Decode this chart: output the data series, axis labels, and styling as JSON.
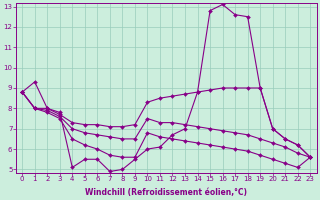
{
  "xlabel": "Windchill (Refroidissement éolien,°C)",
  "x": [
    0,
    1,
    2,
    3,
    4,
    5,
    6,
    7,
    8,
    9,
    10,
    11,
    12,
    13,
    14,
    15,
    16,
    17,
    18,
    19,
    20,
    21,
    22,
    23
  ],
  "line1": [
    8.8,
    9.3,
    8.0,
    7.8,
    5.1,
    5.5,
    5.5,
    4.9,
    5.0,
    5.5,
    6.0,
    6.1,
    6.7,
    7.0,
    8.8,
    12.8,
    13.1,
    12.6,
    12.5,
    9.0,
    7.0,
    6.5,
    6.2,
    5.6
  ],
  "line2": [
    8.8,
    8.0,
    8.0,
    7.7,
    7.3,
    7.2,
    7.2,
    7.1,
    7.1,
    7.2,
    8.3,
    8.5,
    8.6,
    8.7,
    8.8,
    8.9,
    9.0,
    9.0,
    9.0,
    9.0,
    7.0,
    6.5,
    6.2,
    5.6
  ],
  "line3": [
    8.8,
    8.0,
    7.9,
    7.6,
    7.0,
    6.8,
    6.7,
    6.6,
    6.5,
    6.5,
    7.5,
    7.3,
    7.3,
    7.2,
    7.1,
    7.0,
    6.9,
    6.8,
    6.7,
    6.5,
    6.3,
    6.1,
    5.8,
    5.6
  ],
  "line4": [
    8.8,
    8.0,
    7.8,
    7.5,
    6.5,
    6.2,
    6.0,
    5.7,
    5.6,
    5.6,
    6.8,
    6.6,
    6.5,
    6.4,
    6.3,
    6.2,
    6.1,
    6.0,
    5.9,
    5.7,
    5.5,
    5.3,
    5.1,
    5.6
  ],
  "line_color": "#880088",
  "bg_color": "#cceedd",
  "grid_color": "#99ccbb",
  "ylim": [
    5,
    13
  ],
  "xlim": [
    -0.5,
    23.5
  ],
  "yticks": [
    5,
    6,
    7,
    8,
    9,
    10,
    11,
    12,
    13
  ],
  "xticks": [
    0,
    1,
    2,
    3,
    4,
    5,
    6,
    7,
    8,
    9,
    10,
    11,
    12,
    13,
    14,
    15,
    16,
    17,
    18,
    19,
    20,
    21,
    22,
    23
  ],
  "tick_fontsize": 5,
  "xlabel_fontsize": 5.5
}
